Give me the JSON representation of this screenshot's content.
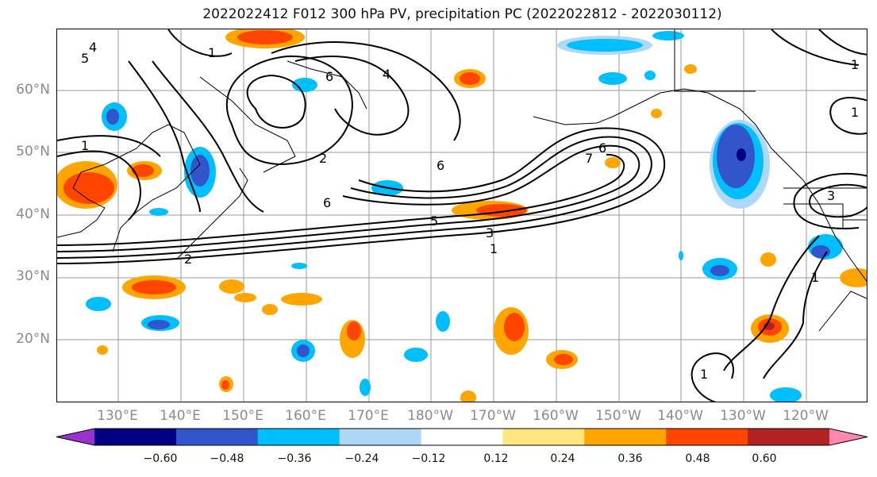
{
  "title": "2022022412 F012 300 hPa PV, precipitation PC (2022022812 - 2022030112)",
  "map": {
    "lat_labels": [
      "60°N",
      "50°N",
      "40°N",
      "30°N",
      "20°N"
    ],
    "lon_labels": [
      "130°E",
      "140°E",
      "150°E",
      "160°E",
      "170°E",
      "180°W",
      "170°W",
      "160°W",
      "150°W",
      "140°W",
      "130°W",
      "120°W"
    ],
    "contour_labels": [
      "1",
      "1",
      "1",
      "1",
      "1",
      "2",
      "2",
      "3",
      "3",
      "4",
      "4",
      "5",
      "5",
      "6",
      "6",
      "6",
      "6",
      "7",
      "7",
      "1",
      "1",
      "1"
    ]
  },
  "colorbar": {
    "colors": [
      "#9933cc",
      "#000080",
      "#3355cc",
      "#00bfff",
      "#add8f8",
      "#ffffff",
      "#ffe680",
      "#ffa500",
      "#ff4500",
      "#b22222",
      "#ff88b0"
    ],
    "tick_labels": [
      "−0.60",
      "−0.48",
      "−0.36",
      "−0.24",
      "−0.12",
      "0.12",
      "0.24",
      "0.36",
      "0.48",
      "0.60"
    ]
  }
}
